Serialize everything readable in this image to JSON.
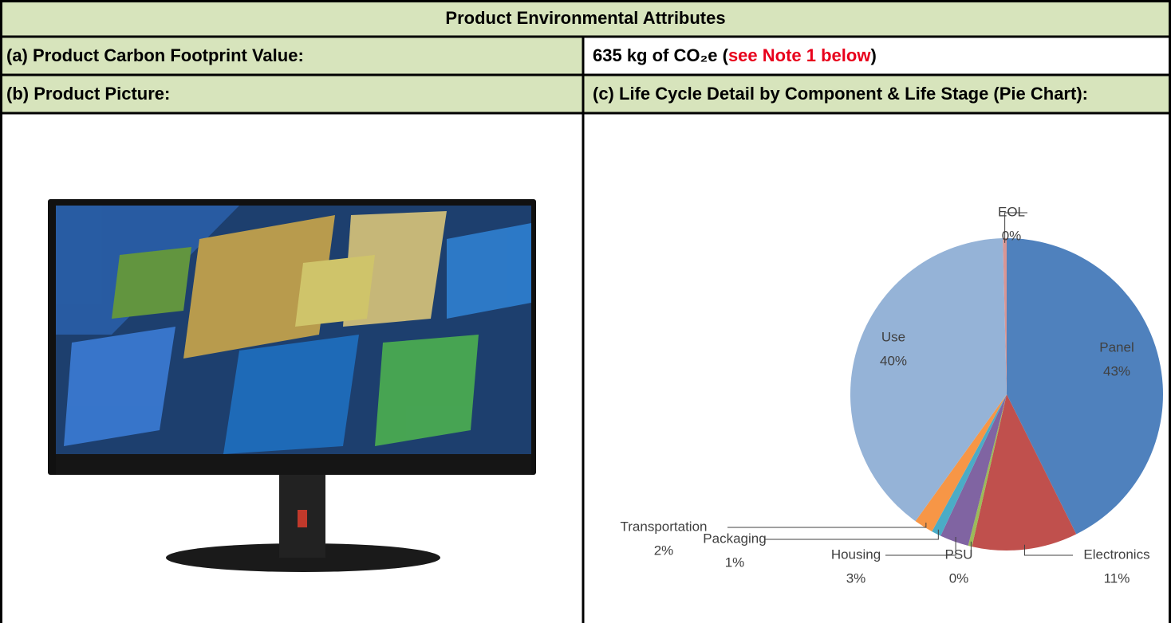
{
  "table": {
    "title": "Product Environmental Attributes",
    "rows": [
      {
        "label": "(a) Product Carbon Footprint Value:",
        "value": [
          "635 kg of CO₂e (",
          "see Note 1 below",
          ")"
        ]
      },
      {
        "label": "(b) Product Picture:",
        "value": [
          "(c) Life Cycle Detail by Component & Life Stage (Pie Chart):"
        ]
      }
    ]
  },
  "chart_data": {
    "type": "pie",
    "categories": [
      "Panel",
      "Electronics",
      "PSU",
      "Housing",
      "Packaging",
      "Transportation",
      "Use",
      "EOL"
    ],
    "values": [
      43,
      11,
      0.4,
      3,
      1,
      2,
      40,
      0.4
    ],
    "value_labels": [
      "43%",
      "11%",
      "0%",
      "3%",
      "1%",
      "2%",
      "40%",
      "0%"
    ],
    "colors": [
      "#4f81bd",
      "#c0504d",
      "#9bbb59",
      "#8064a2",
      "#4bacc6",
      "#f79646",
      "#95b3d7",
      "#d99694"
    ]
  }
}
